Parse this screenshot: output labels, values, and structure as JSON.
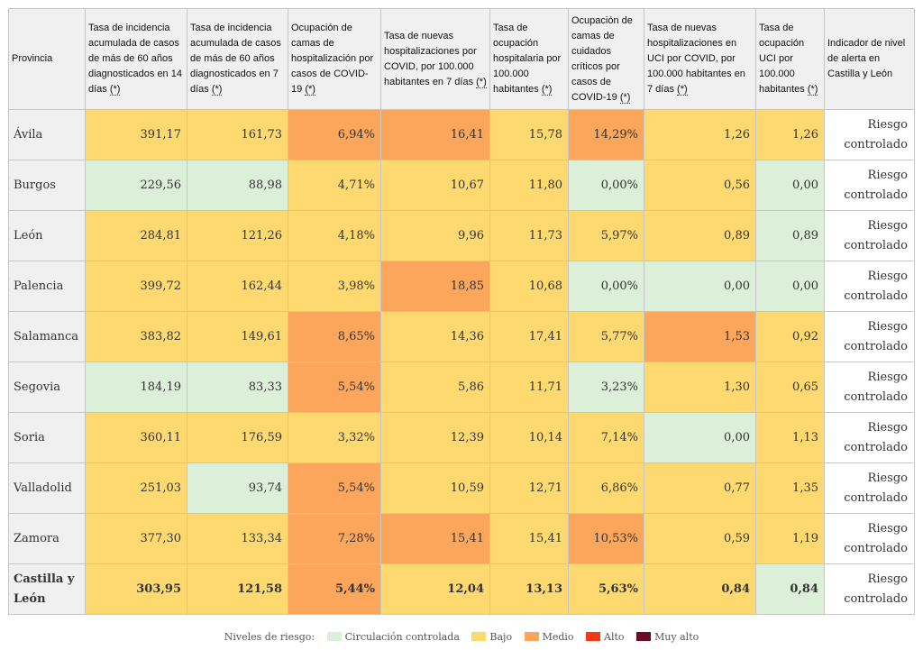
{
  "header": {
    "provincia": "Provincia",
    "incid14": "Tasa de incidencia acumulada de casos de más de 60 años diagnosticados en 14 días",
    "incid7": "Tasa de incidencia acumulada de casos de más de 60 años diagnosticados en 7 días",
    "ocup_camas": "Ocupación de camas de hospitalización por casos de COVID-19",
    "nuevas_hosp": "Tasa de nuevas hospitalizaciones por COVID, por 100.000 habitantes en 7 días",
    "ocup_hosp": "Tasa de ocupación hospitalaria por 100.000 habitantes",
    "ocup_criticos": "Ocupación de camas de cuidados críticos por casos de COVID-19",
    "nuevas_uci": "Tasa de nuevas hospitalizaciones en UCI por COVID, por 100.000 habitantes en 7 días",
    "ocup_uci": "Tasa de ocupación UCI por 100.000 habitantes",
    "indicador": "Indicador de nivel de alerta en Castilla y León",
    "star": "(*)"
  },
  "rows": [
    {
      "provincia": "Ávila",
      "v": [
        "391,17",
        "161,73",
        "6,94%",
        "16,41",
        "15,78",
        "14,29%",
        "1,26",
        "1,26"
      ],
      "lv": [
        "bajo",
        "bajo",
        "medio",
        "medio",
        "bajo",
        "medio",
        "bajo",
        "bajo"
      ],
      "riesgo": [
        "Riesgo",
        "controlado"
      ]
    },
    {
      "provincia": "Burgos",
      "v": [
        "229,56",
        "88,98",
        "4,71%",
        "10,67",
        "11,80",
        "0,00%",
        "0,56",
        "0,00"
      ],
      "lv": [
        "cc",
        "cc",
        "bajo",
        "bajo",
        "bajo",
        "cc",
        "bajo",
        "cc"
      ],
      "riesgo": [
        "Riesgo",
        "controlado"
      ]
    },
    {
      "provincia": "León",
      "v": [
        "284,81",
        "121,26",
        "4,18%",
        "9,96",
        "11,73",
        "5,97%",
        "0,89",
        "0,89"
      ],
      "lv": [
        "bajo",
        "bajo",
        "bajo",
        "bajo",
        "bajo",
        "bajo",
        "bajo",
        "cc"
      ],
      "riesgo": [
        "Riesgo",
        "controlado"
      ]
    },
    {
      "provincia": "Palencia",
      "v": [
        "399,72",
        "162,44",
        "3,98%",
        "18,85",
        "10,68",
        "0,00%",
        "0,00",
        "0,00"
      ],
      "lv": [
        "bajo",
        "bajo",
        "bajo",
        "medio",
        "bajo",
        "cc",
        "cc",
        "cc"
      ],
      "riesgo": [
        "Riesgo",
        "controlado"
      ]
    },
    {
      "provincia": "Salamanca",
      "v": [
        "383,82",
        "149,61",
        "8,65%",
        "14,36",
        "17,41",
        "5,77%",
        "1,53",
        "0,92"
      ],
      "lv": [
        "bajo",
        "bajo",
        "medio",
        "bajo",
        "bajo",
        "bajo",
        "medio",
        "bajo"
      ],
      "riesgo": [
        "Riesgo",
        "controlado"
      ]
    },
    {
      "provincia": "Segovia",
      "v": [
        "184,19",
        "83,33",
        "5,54%",
        "5,86",
        "11,71",
        "3,23%",
        "1,30",
        "0,65"
      ],
      "lv": [
        "cc",
        "cc",
        "medio",
        "bajo",
        "bajo",
        "cc",
        "bajo",
        "bajo"
      ],
      "riesgo": [
        "Riesgo",
        "controlado"
      ]
    },
    {
      "provincia": "Soria",
      "v": [
        "360,11",
        "176,59",
        "3,32%",
        "12,39",
        "10,14",
        "7,14%",
        "0,00",
        "1,13"
      ],
      "lv": [
        "bajo",
        "bajo",
        "bajo",
        "bajo",
        "bajo",
        "bajo",
        "cc",
        "bajo"
      ],
      "riesgo": [
        "Riesgo",
        "controlado"
      ]
    },
    {
      "provincia": "Valladolid",
      "v": [
        "251,03",
        "93,74",
        "5,54%",
        "10,59",
        "12,71",
        "6,86%",
        "0,77",
        "1,35"
      ],
      "lv": [
        "bajo",
        "cc",
        "medio",
        "bajo",
        "bajo",
        "bajo",
        "bajo",
        "bajo"
      ],
      "riesgo": [
        "Riesgo",
        "controlado"
      ]
    },
    {
      "provincia": "Zamora",
      "v": [
        "377,30",
        "133,34",
        "7,28%",
        "15,41",
        "15,41",
        "10,53%",
        "0,59",
        "1,19"
      ],
      "lv": [
        "bajo",
        "bajo",
        "medio",
        "medio",
        "bajo",
        "medio",
        "bajo",
        "bajo"
      ],
      "riesgo": [
        "Riesgo",
        "controlado"
      ]
    },
    {
      "provincia": "Castilla y León",
      "v": [
        "303,95",
        "121,58",
        "5,44%",
        "12,04",
        "13,13",
        "5,63%",
        "0,84",
        "0,84"
      ],
      "lv": [
        "bajo",
        "bajo",
        "medio",
        "bajo",
        "bajo",
        "bajo",
        "bajo",
        "cc"
      ],
      "riesgo": [
        "Riesgo",
        "controlado"
      ]
    }
  ],
  "legend": {
    "title": "Niveles de riesgo:",
    "items": [
      {
        "label": "Circulación controlada",
        "color": "#dcefd8"
      },
      {
        "label": "Bajo",
        "color": "#fdd970"
      },
      {
        "label": "Medio",
        "color": "#fca65c"
      },
      {
        "label": "Alto",
        "color": "#f53a19"
      },
      {
        "label": "Muy alto",
        "color": "#6b0b26"
      }
    ]
  }
}
